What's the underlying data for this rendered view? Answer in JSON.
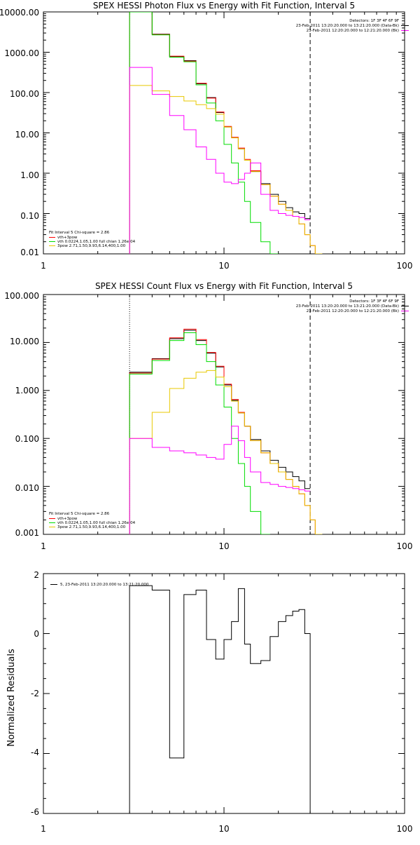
{
  "colors": {
    "frame": "#000000",
    "data": "#000000",
    "total": "#ff0000",
    "thermal": "#00dd00",
    "thick": "#e8c800",
    "background": "#ff00ff"
  },
  "chart_data": [
    {
      "id": "photon",
      "type": "line",
      "title": "SPEX HESSI Photon Flux vs Energy with Fit Function, Interval 5",
      "x_scale": "log",
      "y_scale": "log",
      "xlim": [
        1,
        100
      ],
      "ylim": [
        0.01,
        10000
      ],
      "x_ticks": [
        1,
        10,
        100
      ],
      "x_tick_labels": [
        "1",
        "10",
        "100"
      ],
      "y_ticks": [
        0.01,
        0.1,
        1,
        10,
        100,
        1000,
        10000
      ],
      "y_tick_labels": [
        "0.01",
        "0.10",
        "1.00",
        "10.00",
        "100.00",
        "1000.00",
        "10000.00"
      ],
      "fit_range_lines": [
        {
          "x": 3,
          "style": "dotted-yellow"
        },
        {
          "x": 30,
          "style": "dashed"
        }
      ],
      "legend_top_right": [
        "Detectors: 1F 3F 4F 6F 9F",
        "23-Feb-2011 13:20:20.000 to 13:21:20.000 (Data-Bk)",
        "23-Feb-2011 12:20:20.000 to 12:21:20.000 (Bk)"
      ],
      "legend_bottom_left": [
        "Fit Interval 5   Chi-square = 2.86",
        "vth+3pow",
        "vth 0.0224,1.05,1.00  full chian 1.26e-04",
        "3pow 2.71,1.50,9.93,6.14,400,1.00"
      ],
      "energy_bins": [
        3,
        4,
        5,
        6,
        7,
        8,
        9,
        10,
        11,
        12,
        13,
        14,
        16,
        18,
        20,
        22,
        24,
        26,
        28,
        30,
        32,
        35,
        40
      ],
      "series": [
        {
          "name": "Data-Bk",
          "color_key": "data",
          "values": [
            10000,
            2800,
            780,
            620,
            165,
            75,
            32,
            14,
            7.6,
            4.0,
            2.1,
            1.1,
            0.55,
            0.3,
            0.2,
            0.14,
            0.11,
            0.1,
            0.075
          ]
        },
        {
          "name": "vth+3pow",
          "color_key": "total",
          "values": [
            10000,
            2750,
            800,
            600,
            170,
            73,
            33,
            14.5,
            7.8,
            4.2,
            2.2,
            1.15,
            0.52,
            0.27,
            0.17,
            0.12,
            0.085,
            0.055,
            0.03,
            0.016,
            0.01
          ]
        },
        {
          "name": "vth",
          "color_key": "thermal",
          "values": [
            10000,
            2700,
            750,
            580,
            155,
            55,
            20,
            5.2,
            1.8,
            0.6,
            0.2,
            0.06,
            0.02,
            0.008
          ]
        },
        {
          "name": "3pow",
          "color_key": "thick",
          "values": [
            150,
            110,
            80,
            62,
            50,
            40,
            29,
            14,
            7.5,
            4.0,
            2.1,
            1.1,
            0.52,
            0.27,
            0.17,
            0.12,
            0.085,
            0.055,
            0.03,
            0.016,
            0.01
          ]
        },
        {
          "name": "Bk",
          "color_key": "background",
          "values": [
            420,
            90,
            27,
            12,
            4.5,
            2.2,
            1.0,
            0.6,
            0.55,
            0.7,
            1.0,
            1.8,
            0.3,
            0.12,
            0.1,
            0.09,
            0.085,
            0.08,
            0.07
          ]
        }
      ]
    },
    {
      "id": "count",
      "type": "line",
      "title": "SPEX HESSI Count Flux vs Energy with Fit Function, Interval 5",
      "x_scale": "log",
      "y_scale": "log",
      "xlim": [
        1,
        100
      ],
      "ylim": [
        0.001,
        100
      ],
      "x_ticks": [
        1,
        10,
        100
      ],
      "x_tick_labels": [
        "1",
        "10",
        "100"
      ],
      "y_ticks": [
        0.001,
        0.01,
        0.1,
        1,
        10,
        100
      ],
      "y_tick_labels": [
        "0.001",
        "0.010",
        "0.100",
        "1.000",
        "10.000",
        "100.000"
      ],
      "fit_range_lines": [
        {
          "x": 3,
          "style": "dotted"
        },
        {
          "x": 30,
          "style": "dashed"
        }
      ],
      "legend_top_right": [
        "Detectors: 1F 3F 4F 6F 9F",
        "23-Feb-2011 13:20:20.000 to 13:21:20.000 (Data-Bk)",
        "23-Feb-2011 12:20:20.000 to 12:21:20.000 (Bk)"
      ],
      "legend_bottom_left": [
        "Fit Interval 5   Chi-square = 2.86",
        "vth+3pow",
        "vth 0.0224,1.05,1.00  full chian 1.26e-04",
        "3pow 2.71,1.50,9.93,6.14,400,1.00"
      ],
      "energy_bins": [
        3,
        4,
        5,
        6,
        7,
        8,
        9,
        10,
        11,
        12,
        13,
        14,
        16,
        18,
        20,
        22,
        24,
        26,
        28,
        30,
        32,
        35,
        40
      ],
      "series": [
        {
          "name": "Data-Bk",
          "color_key": "data",
          "values": [
            2.4,
            4.6,
            12,
            18,
            11,
            6.0,
            3.1,
            1.3,
            0.62,
            0.34,
            0.18,
            0.095,
            0.055,
            0.035,
            0.025,
            0.02,
            0.016,
            0.013,
            0.009
          ]
        },
        {
          "name": "vth+3pow",
          "color_key": "total",
          "values": [
            2.3,
            4.5,
            12.5,
            19,
            11.5,
            6.2,
            3.2,
            1.35,
            0.65,
            0.35,
            0.18,
            0.09,
            0.05,
            0.03,
            0.02,
            0.014,
            0.01,
            0.007,
            0.004,
            0.002,
            0.001
          ]
        },
        {
          "name": "vth",
          "color_key": "thermal",
          "values": [
            2.2,
            4.2,
            11,
            16,
            9,
            4.0,
            1.3,
            0.45,
            0.1,
            0.03,
            0.01,
            0.003,
            0.001
          ]
        },
        {
          "name": "3pow",
          "color_key": "thick",
          "values": [
            0.1,
            0.35,
            1.1,
            1.8,
            2.4,
            2.6,
            1.9,
            1.2,
            0.6,
            0.34,
            0.18,
            0.09,
            0.05,
            0.03,
            0.02,
            0.014,
            0.01,
            0.007,
            0.004,
            0.002,
            0.001
          ]
        },
        {
          "name": "Bk",
          "color_key": "background",
          "values": [
            0.1,
            0.065,
            0.055,
            0.05,
            0.045,
            0.04,
            0.037,
            0.075,
            0.18,
            0.09,
            0.04,
            0.02,
            0.012,
            0.011,
            0.01,
            0.0095,
            0.009,
            0.0085,
            0.008
          ]
        }
      ]
    },
    {
      "id": "resid",
      "type": "line",
      "x_scale": "log",
      "y_scale": "linear",
      "xlim": [
        1,
        100
      ],
      "ylim": [
        -6,
        2
      ],
      "ylabel": "Normalized Residuals",
      "x_ticks": [
        1,
        10,
        100
      ],
      "x_tick_labels": [
        "1",
        "10",
        "100"
      ],
      "y_ticks": [
        -6,
        -4,
        -2,
        0,
        2
      ],
      "y_tick_labels": [
        "-6",
        "-4",
        "-2",
        "0",
        "2"
      ],
      "legend_top_left": [
        "5, 23-Feb-2011 13:20:20.000 to 13:21:20.000"
      ],
      "energy_bins": [
        3,
        4,
        5,
        6,
        7,
        8,
        9,
        10,
        11,
        12,
        13,
        14,
        16,
        18,
        20,
        22,
        24,
        26,
        28,
        30
      ],
      "series": [
        {
          "name": "Residuals",
          "color_key": "data",
          "values": [
            1.6,
            1.45,
            -4.15,
            1.3,
            1.45,
            -0.2,
            -0.85,
            -0.2,
            0.4,
            1.5,
            -0.35,
            -1.0,
            -0.9,
            -0.1,
            0.4,
            0.6,
            0.75,
            0.8,
            0.0
          ]
        }
      ]
    }
  ]
}
